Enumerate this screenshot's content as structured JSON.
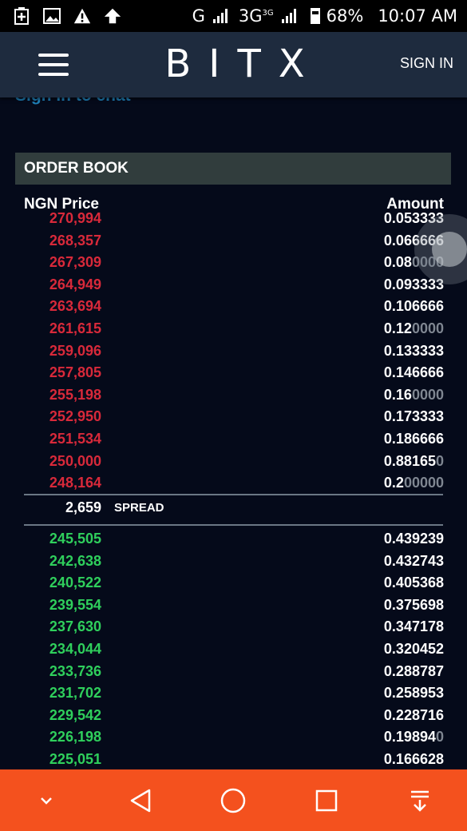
{
  "status_bar": {
    "network": "G",
    "network2": "3G",
    "network2_sup": "3G",
    "battery": "68%",
    "time": "10:07 AM"
  },
  "appbar": {
    "logo": "BITX",
    "sign_in": "SIGN IN"
  },
  "chat_link": "Sign in to chat",
  "order_book": {
    "title": "ORDER BOOK",
    "price_header": "NGN Price",
    "amount_header": "Amount",
    "asks": [
      {
        "price": "270,994",
        "amount": "0.053333",
        "dim": ""
      },
      {
        "price": "268,357",
        "amount": "0.066666",
        "dim": ""
      },
      {
        "price": "267,309",
        "amount": "0.08",
        "dim": "0000"
      },
      {
        "price": "264,949",
        "amount": "0.093333",
        "dim": ""
      },
      {
        "price": "263,694",
        "amount": "0.106666",
        "dim": ""
      },
      {
        "price": "261,615",
        "amount": "0.12",
        "dim": "0000"
      },
      {
        "price": "259,096",
        "amount": "0.133333",
        "dim": ""
      },
      {
        "price": "257,805",
        "amount": "0.146666",
        "dim": ""
      },
      {
        "price": "255,198",
        "amount": "0.16",
        "dim": "0000"
      },
      {
        "price": "252,950",
        "amount": "0.173333",
        "dim": ""
      },
      {
        "price": "251,534",
        "amount": "0.186666",
        "dim": ""
      },
      {
        "price": "250,000",
        "amount": "0.88165",
        "dim": "0"
      },
      {
        "price": "248,164",
        "amount": "0.2",
        "dim": "00000"
      }
    ],
    "spread_value": "2,659",
    "spread_label": "SPREAD",
    "bids": [
      {
        "price": "245,505",
        "amount": "0.439239",
        "dim": ""
      },
      {
        "price": "242,638",
        "amount": "0.432743",
        "dim": ""
      },
      {
        "price": "240,522",
        "amount": "0.405368",
        "dim": ""
      },
      {
        "price": "239,554",
        "amount": "0.375698",
        "dim": ""
      },
      {
        "price": "237,630",
        "amount": "0.347178",
        "dim": ""
      },
      {
        "price": "234,044",
        "amount": "0.320452",
        "dim": ""
      },
      {
        "price": "233,736",
        "amount": "0.288787",
        "dim": ""
      },
      {
        "price": "231,702",
        "amount": "0.258953",
        "dim": ""
      },
      {
        "price": "229,542",
        "amount": "0.228716",
        "dim": ""
      },
      {
        "price": "226,198",
        "amount": "0.19894",
        "dim": "0"
      },
      {
        "price": "225,051",
        "amount": "0.166628",
        "dim": ""
      }
    ]
  },
  "colors": {
    "ask": "#d8293a",
    "bid": "#2fcf5c",
    "navbar": "#f4511e",
    "appbar": "#1e2b3e"
  },
  "nav_icons": [
    "chevron-down-icon",
    "back-icon",
    "home-icon",
    "recents-icon",
    "notification-pull-icon"
  ]
}
